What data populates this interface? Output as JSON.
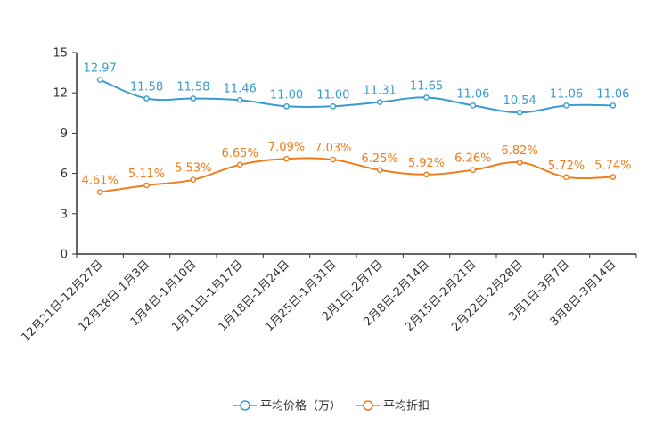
{
  "chart_data": {
    "type": "line",
    "title": "",
    "xlabel": "",
    "ylabel": "",
    "ylim": [
      0,
      15
    ],
    "yticks": [
      0,
      3,
      6,
      9,
      12,
      15
    ],
    "grid": false,
    "legend_position": "bottom-center",
    "categories": [
      "12月21日-12月27日",
      "12月28日-1月3日",
      "1月4日-1月10日",
      "1月11日-1月17日",
      "1月18日-1月24日",
      "1月25日-1月31日",
      "2月1日-2月7日",
      "2月8日-2月14日",
      "2月15日-2月21日",
      "2月22日-2月28日",
      "3月1日-3月7日",
      "3月8日-3月14日"
    ],
    "series": [
      {
        "name": "平均价格（万）",
        "color": "#3a9bd0",
        "values": [
          12.97,
          11.58,
          11.58,
          11.46,
          11.0,
          11.0,
          11.31,
          11.65,
          11.06,
          10.54,
          11.06,
          11.06
        ],
        "labels": [
          "12.97",
          "11.58",
          "11.58",
          "11.46",
          "11.00",
          "11.00",
          "11.31",
          "11.65",
          "11.06",
          "10.54",
          "11.06",
          "11.06"
        ]
      },
      {
        "name": "平均折扣",
        "color": "#f07c1b",
        "values": [
          4.61,
          5.11,
          5.53,
          6.65,
          7.09,
          7.03,
          6.25,
          5.92,
          6.26,
          6.82,
          5.72,
          5.74
        ],
        "labels": [
          "4.61%",
          "5.11%",
          "5.53%",
          "6.65%",
          "7.09%",
          "7.03%",
          "6.25%",
          "5.92%",
          "6.26%",
          "6.82%",
          "5.72%",
          "5.74%"
        ]
      }
    ]
  }
}
